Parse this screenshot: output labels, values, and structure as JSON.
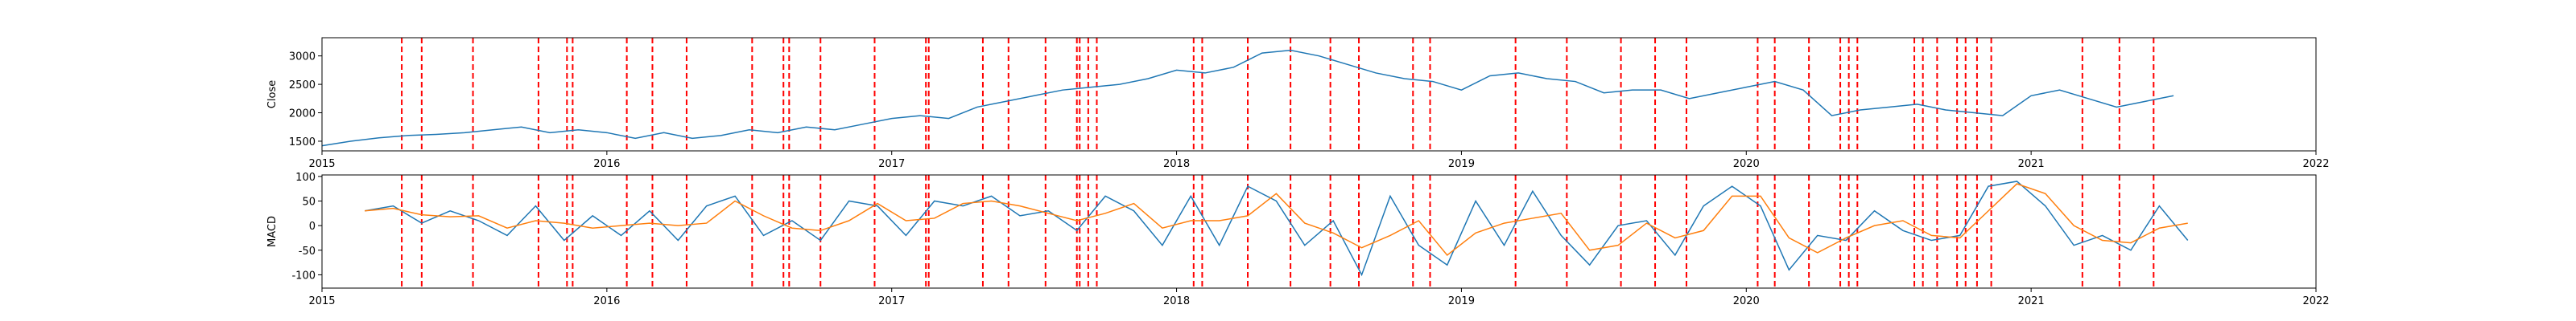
{
  "chart_data": [
    {
      "type": "line",
      "ylabel": "Close",
      "xlim": [
        2015,
        2022
      ],
      "xticks": [
        2015,
        2016,
        2017,
        2018,
        2019,
        2020,
        2021,
        2022
      ],
      "ylim": [
        1330,
        3320
      ],
      "yticks": [
        1500,
        2000,
        2500,
        3000
      ],
      "event_color": "#ff0000",
      "events": [
        2015.28,
        2015.35,
        2015.53,
        2015.76,
        2015.86,
        2015.88,
        2016.07,
        2016.16,
        2016.28,
        2016.51,
        2016.62,
        2016.64,
        2016.75,
        2016.94,
        2017.12,
        2017.13,
        2017.32,
        2017.41,
        2017.54,
        2017.65,
        2017.66,
        2017.69,
        2017.72,
        2018.06,
        2018.09,
        2018.25,
        2018.4,
        2018.54,
        2018.64,
        2018.83,
        2018.89,
        2019.19,
        2019.37,
        2019.56,
        2019.68,
        2019.79,
        2020.04,
        2020.1,
        2020.22,
        2020.33,
        2020.36,
        2020.39,
        2020.59,
        2020.62,
        2020.67,
        2020.74,
        2020.77,
        2020.81,
        2020.86,
        2021.18,
        2021.31,
        2021.43
      ],
      "x": [
        2015.0,
        2015.1,
        2015.2,
        2015.3,
        2015.4,
        2015.5,
        2015.6,
        2015.7,
        2015.8,
        2015.9,
        2016.0,
        2016.1,
        2016.2,
        2016.3,
        2016.4,
        2016.5,
        2016.6,
        2016.7,
        2016.8,
        2016.9,
        2017.0,
        2017.1,
        2017.2,
        2017.3,
        2017.4,
        2017.5,
        2017.6,
        2017.7,
        2017.8,
        2017.9,
        2018.0,
        2018.1,
        2018.2,
        2018.3,
        2018.4,
        2018.5,
        2018.6,
        2018.7,
        2018.8,
        2018.9,
        2019.0,
        2019.1,
        2019.2,
        2019.3,
        2019.4,
        2019.5,
        2019.6,
        2019.7,
        2019.8,
        2019.9,
        2020.0,
        2020.1,
        2020.2,
        2020.3,
        2020.4,
        2020.5,
        2020.6,
        2020.7,
        2020.8,
        2020.9,
        2021.0,
        2021.1,
        2021.2,
        2021.3,
        2021.4,
        2021.5
      ],
      "series": [
        {
          "color": "#1f77b4",
          "values": [
            1420,
            1500,
            1560,
            1600,
            1620,
            1650,
            1700,
            1750,
            1650,
            1700,
            1650,
            1550,
            1650,
            1550,
            1600,
            1700,
            1650,
            1750,
            1700,
            1800,
            1900,
            1950,
            1900,
            2100,
            2200,
            2300,
            2400,
            2450,
            2500,
            2600,
            2750,
            2700,
            2800,
            3050,
            3100,
            3000,
            2850,
            2700,
            2600,
            2550,
            2400,
            2650,
            2700,
            2600,
            2550,
            2350,
            2400,
            2400,
            2250,
            2350,
            2450,
            2550,
            2400,
            1950,
            2050,
            2100,
            2150,
            2050,
            2000,
            1950,
            2300,
            2400,
            2250,
            2100,
            2200,
            2300
          ]
        }
      ]
    },
    {
      "type": "line",
      "ylabel": "MACD",
      "xlim": [
        2015,
        2022
      ],
      "xticks": [
        2015,
        2016,
        2017,
        2018,
        2019,
        2020,
        2021,
        2022
      ],
      "ylim": [
        -127,
        103
      ],
      "yticks": [
        -100,
        -50,
        0,
        50,
        100
      ],
      "x": [
        2015.15,
        2015.25,
        2015.35,
        2015.45,
        2015.55,
        2015.65,
        2015.75,
        2015.85,
        2015.95,
        2016.05,
        2016.15,
        2016.25,
        2016.35,
        2016.45,
        2016.55,
        2016.65,
        2016.75,
        2016.85,
        2016.95,
        2017.05,
        2017.15,
        2017.25,
        2017.35,
        2017.45,
        2017.55,
        2017.65,
        2017.75,
        2017.85,
        2017.95,
        2018.05,
        2018.15,
        2018.25,
        2018.35,
        2018.45,
        2018.55,
        2018.65,
        2018.75,
        2018.85,
        2018.95,
        2019.05,
        2019.15,
        2019.25,
        2019.35,
        2019.45,
        2019.55,
        2019.65,
        2019.75,
        2019.85,
        2019.95,
        2020.05,
        2020.15,
        2020.25,
        2020.35,
        2020.45,
        2020.55,
        2020.65,
        2020.75,
        2020.85,
        2020.95,
        2021.05,
        2021.15,
        2021.25,
        2021.35,
        2021.45,
        2021.55
      ],
      "series": [
        {
          "color": "#1f77b4",
          "values": [
            30,
            40,
            5,
            30,
            10,
            -20,
            40,
            -30,
            20,
            -20,
            30,
            -30,
            40,
            60,
            -20,
            10,
            -30,
            50,
            40,
            -20,
            50,
            40,
            60,
            20,
            30,
            -10,
            60,
            30,
            -40,
            60,
            -40,
            80,
            50,
            -40,
            10,
            -100,
            60,
            -40,
            -80,
            50,
            -40,
            70,
            -20,
            -80,
            0,
            10,
            -60,
            40,
            80,
            40,
            -90,
            -20,
            -30,
            30,
            -10,
            -30,
            -20,
            80,
            90,
            40,
            -40,
            -20,
            -50,
            40,
            -30
          ]
        },
        {
          "color": "#ff7f0e",
          "values": [
            30,
            35,
            22,
            18,
            20,
            -5,
            10,
            5,
            -5,
            0,
            5,
            0,
            5,
            50,
            20,
            -5,
            -10,
            10,
            45,
            10,
            15,
            45,
            50,
            40,
            25,
            10,
            25,
            45,
            -5,
            10,
            10,
            20,
            65,
            5,
            -15,
            -45,
            -20,
            10,
            -60,
            -15,
            5,
            15,
            25,
            -50,
            -40,
            5,
            -25,
            -10,
            60,
            60,
            -25,
            -55,
            -25,
            0,
            10,
            -20,
            -25,
            30,
            85,
            65,
            0,
            -30,
            -35,
            -5,
            5
          ]
        }
      ]
    }
  ]
}
